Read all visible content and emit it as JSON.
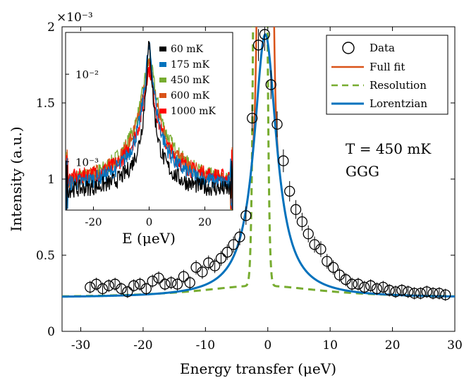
{
  "chart_data": [
    {
      "type": "scatter",
      "xlabel": "Energy transfer (μeV)",
      "ylabel": "Intensity (a.u.)",
      "y_multiplier": "×10⁻³",
      "xlim": [
        -33,
        30
      ],
      "ylim": [
        0,
        2
      ],
      "x_ticks": [
        -30,
        -20,
        -10,
        0,
        10,
        20,
        30
      ],
      "y_ticks": [
        0,
        0.5,
        1,
        1.5,
        2
      ],
      "x_tick_labels": [
        "-30",
        "-20",
        "-10",
        "0",
        "10",
        "20",
        "30"
      ],
      "y_tick_labels": [
        "0",
        "0.5",
        "1",
        "1.5",
        "2"
      ],
      "legend_position": "top-right",
      "annotation_T": "T = 450 mK",
      "annotation_sample": "GGG",
      "series": [
        {
          "name": "Data",
          "style": "open-circles",
          "color": "#000000",
          "x": [
            -28.5,
            -27.5,
            -26.5,
            -25.5,
            -24.5,
            -23.5,
            -22.5,
            -21.5,
            -20.5,
            -19.5,
            -18.5,
            -17.5,
            -16.5,
            -15.5,
            -14.5,
            -13.5,
            -12.5,
            -11.5,
            -10.5,
            -9.5,
            -8.5,
            -7.5,
            -6.5,
            -5.5,
            -4.5,
            -3.5,
            -2.5,
            -1.5,
            -0.5,
            0.5,
            1.5,
            2.5,
            3.5,
            4.5,
            5.5,
            6.5,
            7.5,
            8.5,
            9.5,
            10.5,
            11.5,
            12.5,
            13.5,
            14.5,
            15.5,
            16.5,
            17.5,
            18.5,
            19.5,
            20.5,
            21.5,
            22.5,
            23.5,
            24.5,
            25.5,
            26.5,
            27.5,
            28.5
          ],
          "y": [
            0.29,
            0.31,
            0.28,
            0.3,
            0.31,
            0.28,
            0.26,
            0.3,
            0.31,
            0.28,
            0.33,
            0.35,
            0.31,
            0.32,
            0.31,
            0.36,
            0.32,
            0.42,
            0.39,
            0.45,
            0.43,
            0.48,
            0.52,
            0.57,
            0.62,
            0.76,
            1.4,
            1.88,
            1.95,
            1.62,
            1.36,
            1.12,
            0.92,
            0.8,
            0.72,
            0.64,
            0.57,
            0.54,
            0.46,
            0.42,
            0.37,
            0.34,
            0.31,
            0.31,
            0.29,
            0.3,
            0.28,
            0.29,
            0.27,
            0.26,
            0.27,
            0.26,
            0.25,
            0.25,
            0.26,
            0.25,
            0.25,
            0.24
          ]
        },
        {
          "name": "Full fit",
          "style": "line",
          "color": "#d95319",
          "model": {
            "baseline": 0.22,
            "lor_amp": 1.73,
            "lor_gamma": 2.2,
            "center": -0.4,
            "res_amp": 16,
            "res_sigma": 0.55
          }
        },
        {
          "name": "Resolution",
          "style": "dashed-line",
          "color": "#77ac30",
          "model": {
            "baseline": 0.22,
            "res_amp": 16,
            "res_sigma": 0.55,
            "center": -1.2,
            "tail_amp": 0.08,
            "tail_gamma": 12
          }
        },
        {
          "name": "Lorentzian",
          "style": "line",
          "color": "#0072bd",
          "model": {
            "baseline": 0.22,
            "lor_amp": 1.73,
            "lor_gamma": 2.2,
            "center": -0.4
          }
        }
      ]
    },
    {
      "type": "line",
      "inset": true,
      "xlabel": "E (μeV)",
      "yscale": "log",
      "xlim": [
        -30,
        30
      ],
      "x_ticks": [
        -20,
        0,
        20
      ],
      "x_tick_labels": [
        "-20",
        "0",
        "20"
      ],
      "y_ticks": [
        0.01,
        0.001
      ],
      "y_tick_labels": [
        "10⁻²",
        "10⁻³"
      ],
      "legend_position": "top-right",
      "series": [
        {
          "name": "60 mK",
          "color": "#000000",
          "peak": 0.02,
          "width": 0.8,
          "wing": 0.0003,
          "base": 0.00045
        },
        {
          "name": "175 mK",
          "color": "#0072bd",
          "peak": 0.018,
          "width": 1.2,
          "wing": 0.0006,
          "base": 0.0005
        },
        {
          "name": "450 mK",
          "color": "#77ac30",
          "peak": 0.012,
          "width": 1.8,
          "wing": 0.0012,
          "base": 0.0005
        },
        {
          "name": "600 mK",
          "color": "#d95319",
          "peak": 0.011,
          "width": 1.7,
          "wing": 0.0011,
          "base": 0.00052
        },
        {
          "name": "1000 mK",
          "color": "#ff0000",
          "peak": 0.01,
          "width": 1.5,
          "wing": 0.0008,
          "base": 0.00058
        }
      ]
    }
  ]
}
